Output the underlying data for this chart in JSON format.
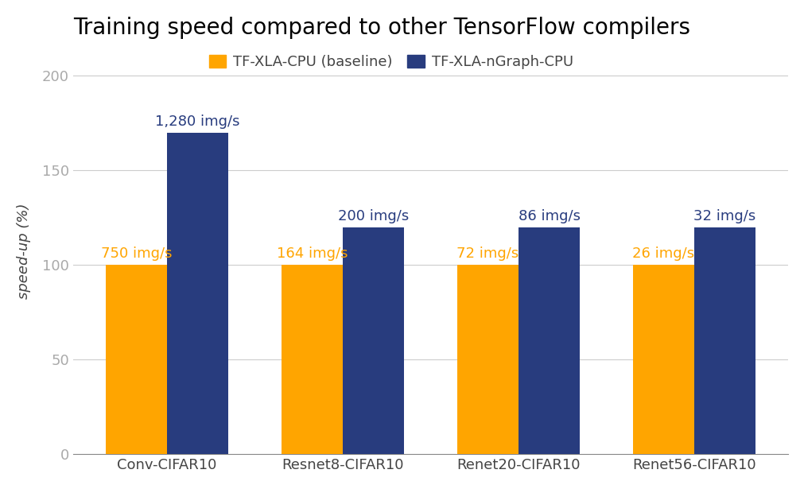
{
  "title": "Training speed compared to other TensorFlow compilers",
  "ylabel": "speed-up (%)",
  "categories": [
    "Conv-CIFAR10",
    "Resnet8-CIFAR10",
    "Renet20-CIFAR10",
    "Renet56-CIFAR10"
  ],
  "baseline_values": [
    100,
    100,
    100,
    100
  ],
  "ngraph_values": [
    170,
    120,
    120,
    120
  ],
  "baseline_labels": [
    "750 img/s",
    "164 img/s",
    "72 img/s",
    "26 img/s"
  ],
  "ngraph_labels": [
    "1,280 img/s",
    "200 img/s",
    "86 img/s",
    "32 img/s"
  ],
  "baseline_color": "#FFA500",
  "ngraph_color": "#283C7E",
  "legend_baseline": "TF-XLA-CPU (baseline)",
  "legend_ngraph": "TF-XLA-nGraph-CPU",
  "yticks": [
    0,
    50,
    100,
    150,
    200
  ],
  "ylim": [
    0,
    215
  ],
  "bar_width": 0.35,
  "background_color": "#ffffff",
  "title_fontsize": 20,
  "axis_label_fontsize": 13,
  "tick_fontsize": 13,
  "annotation_fontsize": 13,
  "legend_fontsize": 13,
  "grid_color": "#cccccc",
  "tick_color": "#aaaaaa"
}
